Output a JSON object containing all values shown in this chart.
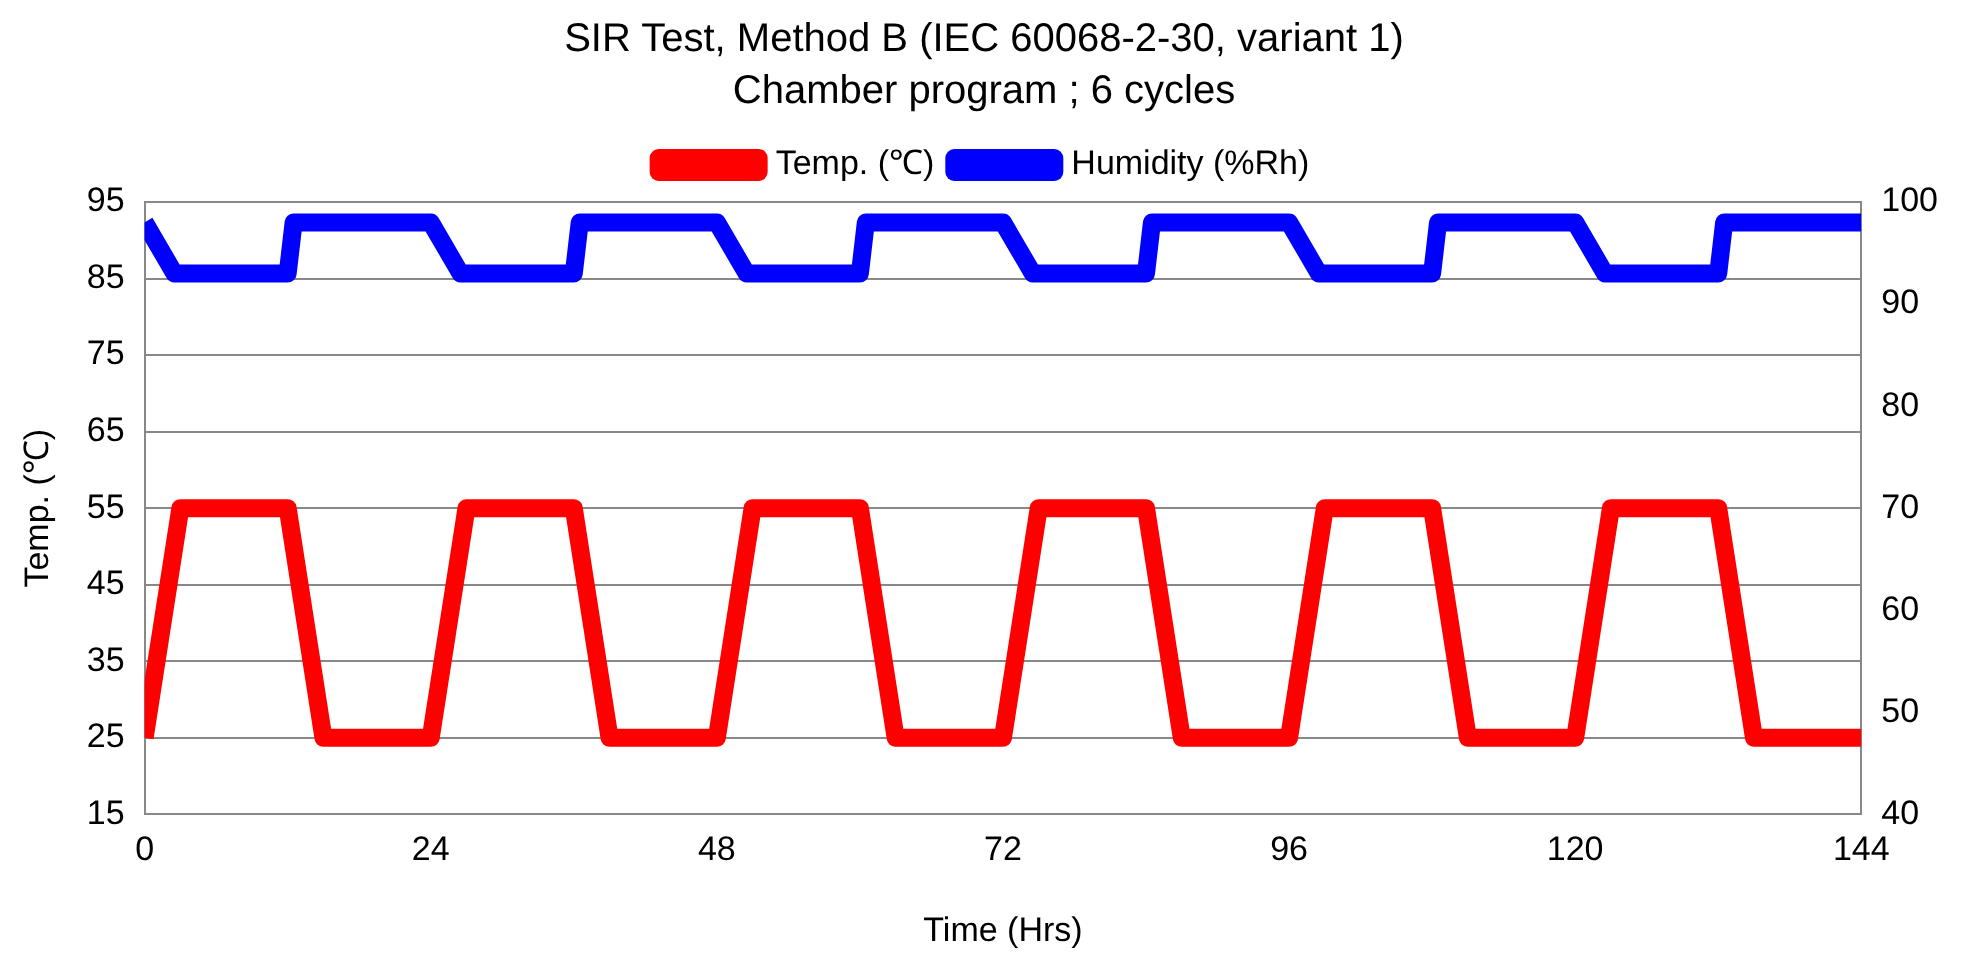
{
  "chart_data": {
    "type": "line",
    "title": "SIR Test, Method B (IEC 60068-2-30, variant 1)",
    "subtitle": "Chamber program ; 6 cycles",
    "xlabel": "Time (Hrs)",
    "ylabel": "Temp. (℃)",
    "xlim": [
      0,
      144
    ],
    "xticks": [
      0,
      24,
      48,
      72,
      96,
      120,
      144
    ],
    "ylim": [
      15,
      95
    ],
    "yticks": [
      15,
      25,
      35,
      45,
      55,
      65,
      75,
      85,
      95
    ],
    "y2lim": [
      40,
      100
    ],
    "y2ticks": [
      40,
      50,
      60,
      70,
      80,
      90,
      100
    ],
    "grid": "y",
    "legend": "top",
    "marker": "none",
    "line_style": "solid",
    "series": [
      {
        "name": "Temp. (℃)",
        "color": "#ff0000",
        "x": [
          0,
          3,
          12,
          15,
          24,
          27,
          36,
          39,
          48,
          51,
          60,
          63,
          72,
          75,
          84,
          87,
          96,
          99,
          108,
          111,
          120,
          123,
          132,
          135,
          144
        ],
        "values": [
          25,
          55,
          55,
          25,
          25,
          55,
          55,
          25,
          25,
          55,
          55,
          25,
          25,
          55,
          55,
          25,
          25,
          55,
          55,
          25,
          25,
          55,
          55,
          25,
          25
        ]
      },
      {
        "name": "Humidity (%Rh)",
        "color": "#0000ff",
        "axis": "y2",
        "x": [
          0,
          2.5,
          12,
          12.5,
          24,
          26.5,
          36,
          36.5,
          48,
          50.5,
          60,
          60.5,
          72,
          74.5,
          84,
          84.5,
          96,
          98.5,
          108,
          108.5,
          120,
          122.5,
          132,
          132.5,
          144
        ],
        "values": [
          98,
          93,
          93,
          98,
          98,
          93,
          93,
          98,
          98,
          93,
          93,
          98,
          98,
          93,
          93,
          98,
          98,
          93,
          93,
          98,
          98,
          93,
          93,
          98,
          98
        ]
      }
    ]
  }
}
